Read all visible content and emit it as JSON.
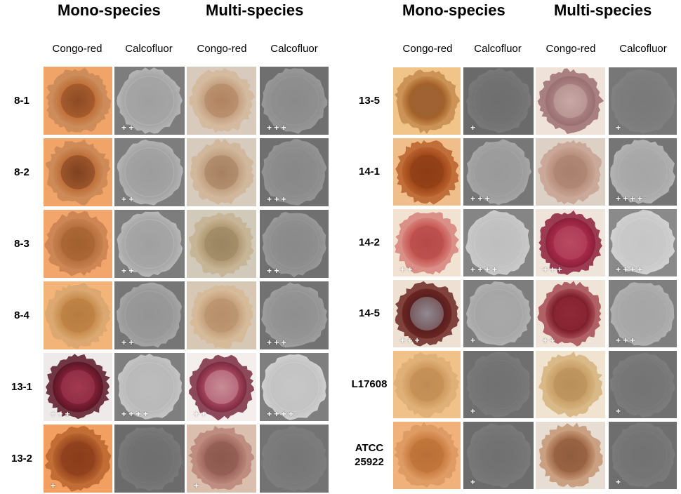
{
  "panels": [
    {
      "id": "left",
      "groups": [
        "Mono-species",
        "Multi-species"
      ],
      "stains": [
        "Congo-red",
        "Calcofluor",
        "Congo-red",
        "Calcofluor"
      ],
      "rows": [
        {
          "label": "8-1",
          "cells": [
            {
              "stain": "congo",
              "bg": "#f1a468",
              "colony": "#c2723a",
              "center": "#8e4a24",
              "edge": "#c88858",
              "score": ""
            },
            {
              "stain": "calco",
              "bg": "#7d7d7d",
              "colony": "#a5a5a5",
              "center": "#a0a0a0",
              "edge": "#b7b7b7",
              "score": "+ +"
            },
            {
              "stain": "congo",
              "bg": "#d8cbbd",
              "colony": "#c6a283",
              "center": "#b08461",
              "edge": "#d3b89b",
              "score": ""
            },
            {
              "stain": "calco",
              "bg": "#6f6f6f",
              "colony": "#8f8f8f",
              "center": "#8a8a8a",
              "edge": "#999999",
              "score": "+ + +"
            }
          ]
        },
        {
          "label": "8-2",
          "cells": [
            {
              "stain": "congo",
              "bg": "#f1a468",
              "colony": "#c0703a",
              "center": "#7f4120",
              "edge": "#c98755",
              "score": ""
            },
            {
              "stain": "calco",
              "bg": "#7d7d7d",
              "colony": "#a3a3a3",
              "center": "#9c9c9c",
              "edge": "#b5b5b5",
              "score": "+ +"
            },
            {
              "stain": "congo",
              "bg": "#d6cbbd",
              "colony": "#c2a283",
              "center": "#a68061",
              "edge": "#d0b597",
              "score": ""
            },
            {
              "stain": "calco",
              "bg": "#6f6f6f",
              "colony": "#8c8c8c",
              "center": "#878787",
              "edge": "#959595",
              "score": "+ + +"
            }
          ]
        },
        {
          "label": "8-3",
          "cells": [
            {
              "stain": "congo",
              "bg": "#f3a66b",
              "colony": "#b8703f",
              "center": "#a3602f",
              "edge": "#c58050",
              "score": ""
            },
            {
              "stain": "calco",
              "bg": "#7d7d7d",
              "colony": "#a6a6a6",
              "center": "#a0a0a0",
              "edge": "#b9b9b9",
              "score": "+ +"
            },
            {
              "stain": "congo",
              "bg": "#d1c9b9",
              "colony": "#b19b76",
              "center": "#9a8460",
              "edge": "#c6b190",
              "score": ""
            },
            {
              "stain": "calco",
              "bg": "#707070",
              "colony": "#8e8e8e",
              "center": "#898989",
              "edge": "#999999",
              "score": "+ +"
            }
          ]
        },
        {
          "label": "8-4",
          "cells": [
            {
              "stain": "congo",
              "bg": "#f3b47a",
              "colony": "#c98e4e",
              "center": "#b77c40",
              "edge": "#d7a56e",
              "score": ""
            },
            {
              "stain": "calco",
              "bg": "#767676",
              "colony": "#999999",
              "center": "#949494",
              "edge": "#a7a7a7",
              "score": "+ +"
            },
            {
              "stain": "congo",
              "bg": "#d6c8b5",
              "colony": "#c6a27e",
              "center": "#b78e6a",
              "edge": "#d6b896",
              "score": ""
            },
            {
              "stain": "calco",
              "bg": "#727272",
              "colony": "#949494",
              "center": "#8e8e8e",
              "edge": "#9f9f9f",
              "score": "+ + +"
            }
          ]
        },
        {
          "label": "13-1",
          "cells": [
            {
              "stain": "congo",
              "bg": "#eeeaea",
              "colony": "#7c1f34",
              "center": "#a23a52",
              "edge": "#5b1626",
              "score": "+ + +"
            },
            {
              "stain": "calco",
              "bg": "#7f7f7f",
              "colony": "#b9b9b9",
              "center": "#bdbdbd",
              "edge": "#c6c6c6",
              "score": "+ + + +"
            },
            {
              "stain": "congo",
              "bg": "#f4eeec",
              "colony": "#a0425a",
              "center": "#c98c97",
              "edge": "#7a2a40",
              "score": "+ +"
            },
            {
              "stain": "calco",
              "bg": "#7f7f7f",
              "colony": "#c3c3c3",
              "center": "#c7c7c7",
              "edge": "#d0d0d0",
              "score": "+ + + +"
            }
          ]
        },
        {
          "label": "13-2",
          "cells": [
            {
              "stain": "congo",
              "bg": "#f2a062",
              "colony": "#9c4a22",
              "center": "#8a3d1b",
              "edge": "#b8642e",
              "score": "+"
            },
            {
              "stain": "calco",
              "bg": "#6b6b6b",
              "colony": "#727272",
              "center": "#6e6e6e",
              "edge": "#7a7a7a",
              "score": ""
            },
            {
              "stain": "congo",
              "bg": "#dbbfae",
              "colony": "#a06a60",
              "center": "#8c574c",
              "edge": "#b98478",
              "score": "+"
            },
            {
              "stain": "calco",
              "bg": "#737373",
              "colony": "#7a7a7a",
              "center": "#767676",
              "edge": "#7e7e7e",
              "score": ""
            }
          ]
        }
      ]
    },
    {
      "id": "right",
      "groups": [
        "Mono-species",
        "Multi-species"
      ],
      "stains": [
        "Congo-red",
        "Calcofluor",
        "Congo-red",
        "Calcofluor"
      ],
      "rows": [
        {
          "label": "13-5",
          "cells": [
            {
              "stain": "congo",
              "bg": "#f1c58a",
              "colony": "#a4612a",
              "center": "#9e6234",
              "edge": "#c48a4c",
              "score": ""
            },
            {
              "stain": "calco",
              "bg": "#6a6a6a",
              "colony": "#727272",
              "center": "#6e6e6e",
              "edge": "#7a7a7a",
              "score": "+"
            },
            {
              "stain": "congo",
              "bg": "#efe2d8",
              "colony": "#a77f80",
              "center": "#c7a8a4",
              "edge": "#9b6e72",
              "score": ""
            },
            {
              "stain": "calco",
              "bg": "#777777",
              "colony": "#7c7c7c",
              "center": "#797979",
              "edge": "#818181",
              "score": "+"
            }
          ]
        },
        {
          "label": "14-1",
          "cells": [
            {
              "stain": "congo",
              "bg": "#f0be8a",
              "colony": "#a1491c",
              "center": "#8d3d16",
              "edge": "#b9622c",
              "score": ""
            },
            {
              "stain": "calco",
              "bg": "#777777",
              "colony": "#9d9d9d",
              "center": "#9a9a9a",
              "edge": "#a7a7a7",
              "score": "+ + +"
            },
            {
              "stain": "congo",
              "bg": "#ddd1c5",
              "colony": "#b9907e",
              "center": "#a9806e",
              "edge": "#c7a292",
              "score": ""
            },
            {
              "stain": "calco",
              "bg": "#757575",
              "colony": "#aaaaaa",
              "center": "#a5a5a5",
              "edge": "#b4b4b4",
              "score": "+ + + +"
            }
          ]
        },
        {
          "label": "14-2",
          "cells": [
            {
              "stain": "congo",
              "bg": "#f1e2d2",
              "colony": "#c75a56",
              "center": "#b54a48",
              "edge": "#d6807a",
              "score": "+ +"
            },
            {
              "stain": "calco",
              "bg": "#858585",
              "colony": "#c2c2c2",
              "center": "#bebebe",
              "edge": "#cbcbcb",
              "score": "+ + + +"
            },
            {
              "stain": "congo",
              "bg": "#efe4da",
              "colony": "#a42a48",
              "center": "#b84a62",
              "edge": "#8c1f3a",
              "score": "+ + +"
            },
            {
              "stain": "calco",
              "bg": "#8a8a8a",
              "colony": "#c9c9c9",
              "center": "#c6c6c6",
              "edge": "#d2d2d2",
              "score": "+ + + +"
            }
          ]
        },
        {
          "label": "14-5",
          "cells": [
            {
              "stain": "congo",
              "bg": "#eee0d2",
              "colony": "#5a1f1f",
              "center": "#8f8a92",
              "edge": "#6b2622",
              "score": "+ + +"
            },
            {
              "stain": "calco",
              "bg": "#7d7d7d",
              "colony": "#a6a6a6",
              "center": "#a9a9a9",
              "edge": "#b2b2b2",
              "score": "+"
            },
            {
              "stain": "congo",
              "bg": "#f0e3d8",
              "colony": "#7d1e2c",
              "center": "#8f2a38",
              "edge": "#a44a52",
              "score": "+ +"
            },
            {
              "stain": "calco",
              "bg": "#7f7f7f",
              "colony": "#a8a8a8",
              "center": "#a5a5a5",
              "edge": "#b1b1b1",
              "score": "+ + +"
            }
          ]
        },
        {
          "label": "L17608",
          "cells": [
            {
              "stain": "congo",
              "bg": "#f0c28a",
              "colony": "#cf9a5e",
              "center": "#c08c54",
              "edge": "#dcae76",
              "score": ""
            },
            {
              "stain": "calco",
              "bg": "#6f6f6f",
              "colony": "#747474",
              "center": "#717171",
              "edge": "#7b7b7b",
              "score": "+"
            },
            {
              "stain": "congo",
              "bg": "#f0e4d0",
              "colony": "#c9a069",
              "center": "#b88e5a",
              "edge": "#d6b27d",
              "score": ""
            },
            {
              "stain": "calco",
              "bg": "#707070",
              "colony": "#777777",
              "center": "#737373",
              "edge": "#7d7d7d",
              "score": "+"
            }
          ]
        },
        {
          "label_lines": [
            "ATCC",
            "25922"
          ],
          "cells": [
            {
              "stain": "congo",
              "bg": "#f0b27a",
              "colony": "#cb7f42",
              "center": "#b96f36",
              "edge": "#dc9760",
              "score": ""
            },
            {
              "stain": "calco",
              "bg": "#6c6c6c",
              "colony": "#747474",
              "center": "#707070",
              "edge": "#7a7a7a",
              "score": "+"
            },
            {
              "stain": "congo",
              "bg": "#e8ddd3",
              "colony": "#a36d4c",
              "center": "#8f5c3e",
              "edge": "#c49574",
              "score": ""
            },
            {
              "stain": "calco",
              "bg": "#6e6e6e",
              "colony": "#757575",
              "center": "#717171",
              "edge": "#7b7b7b",
              "score": "+"
            }
          ]
        }
      ]
    }
  ]
}
